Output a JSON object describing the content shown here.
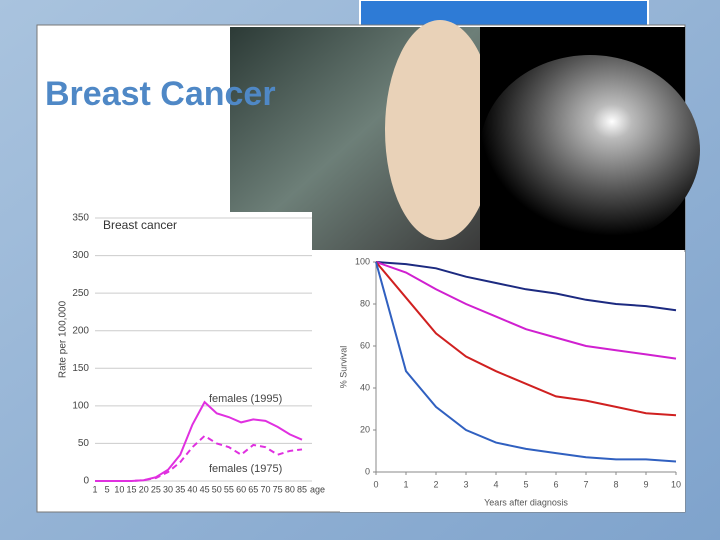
{
  "slide": {
    "title": "Breast Cancer"
  },
  "chart_data": [
    {
      "type": "line",
      "title": "Breast cancer",
      "y_label": "Rate per 100,000",
      "x_suffix": "age",
      "categories": [
        "1",
        "5",
        "10",
        "15",
        "20",
        "25",
        "30",
        "35",
        "40",
        "45",
        "50",
        "55",
        "60",
        "65",
        "70",
        "75",
        "80",
        "85"
      ],
      "ylim": [
        0,
        350
      ],
      "yticks": [
        0,
        50,
        100,
        150,
        200,
        250,
        300,
        350
      ],
      "grid": true,
      "series": [
        {
          "name": "females (1995)",
          "color": "#e030e0",
          "line_style": "solid",
          "values": [
            0,
            0,
            0,
            0,
            1,
            5,
            15,
            35,
            75,
            105,
            90,
            85,
            78,
            82,
            80,
            72,
            62,
            55
          ]
        },
        {
          "name": "females (1975)",
          "color": "#e030e0",
          "line_style": "dashed",
          "values": [
            0,
            0,
            0,
            0,
            1,
            4,
            12,
            25,
            45,
            60,
            50,
            45,
            35,
            48,
            45,
            35,
            40,
            42
          ]
        }
      ]
    },
    {
      "type": "line",
      "x_label": "Years after diagnosis",
      "y_label": "% Survival",
      "x": [
        0,
        1,
        2,
        3,
        4,
        5,
        6,
        7,
        8,
        9,
        10
      ],
      "xlim": [
        0,
        10
      ],
      "xticks": [
        0,
        1,
        2,
        3,
        4,
        5,
        6,
        7,
        8,
        9,
        10
      ],
      "ylim": [
        0,
        100
      ],
      "yticks": [
        0,
        20,
        40,
        60,
        80,
        100
      ],
      "grid": false,
      "series": [
        {
          "color": "#1c2a80",
          "line_style": "solid",
          "values": [
            100,
            99,
            97,
            93,
            90,
            87,
            85,
            82,
            80,
            79,
            77
          ]
        },
        {
          "color": "#d020d0",
          "line_style": "solid",
          "values": [
            100,
            95,
            87,
            80,
            74,
            68,
            64,
            60,
            58,
            56,
            54
          ]
        },
        {
          "color": "#d02020",
          "line_style": "solid",
          "values": [
            100,
            83,
            66,
            55,
            48,
            42,
            36,
            34,
            31,
            28,
            27
          ]
        },
        {
          "color": "#3060c0",
          "line_style": "solid",
          "values": [
            100,
            48,
            31,
            20,
            14,
            11,
            9,
            7,
            6,
            6,
            5
          ]
        }
      ]
    }
  ]
}
